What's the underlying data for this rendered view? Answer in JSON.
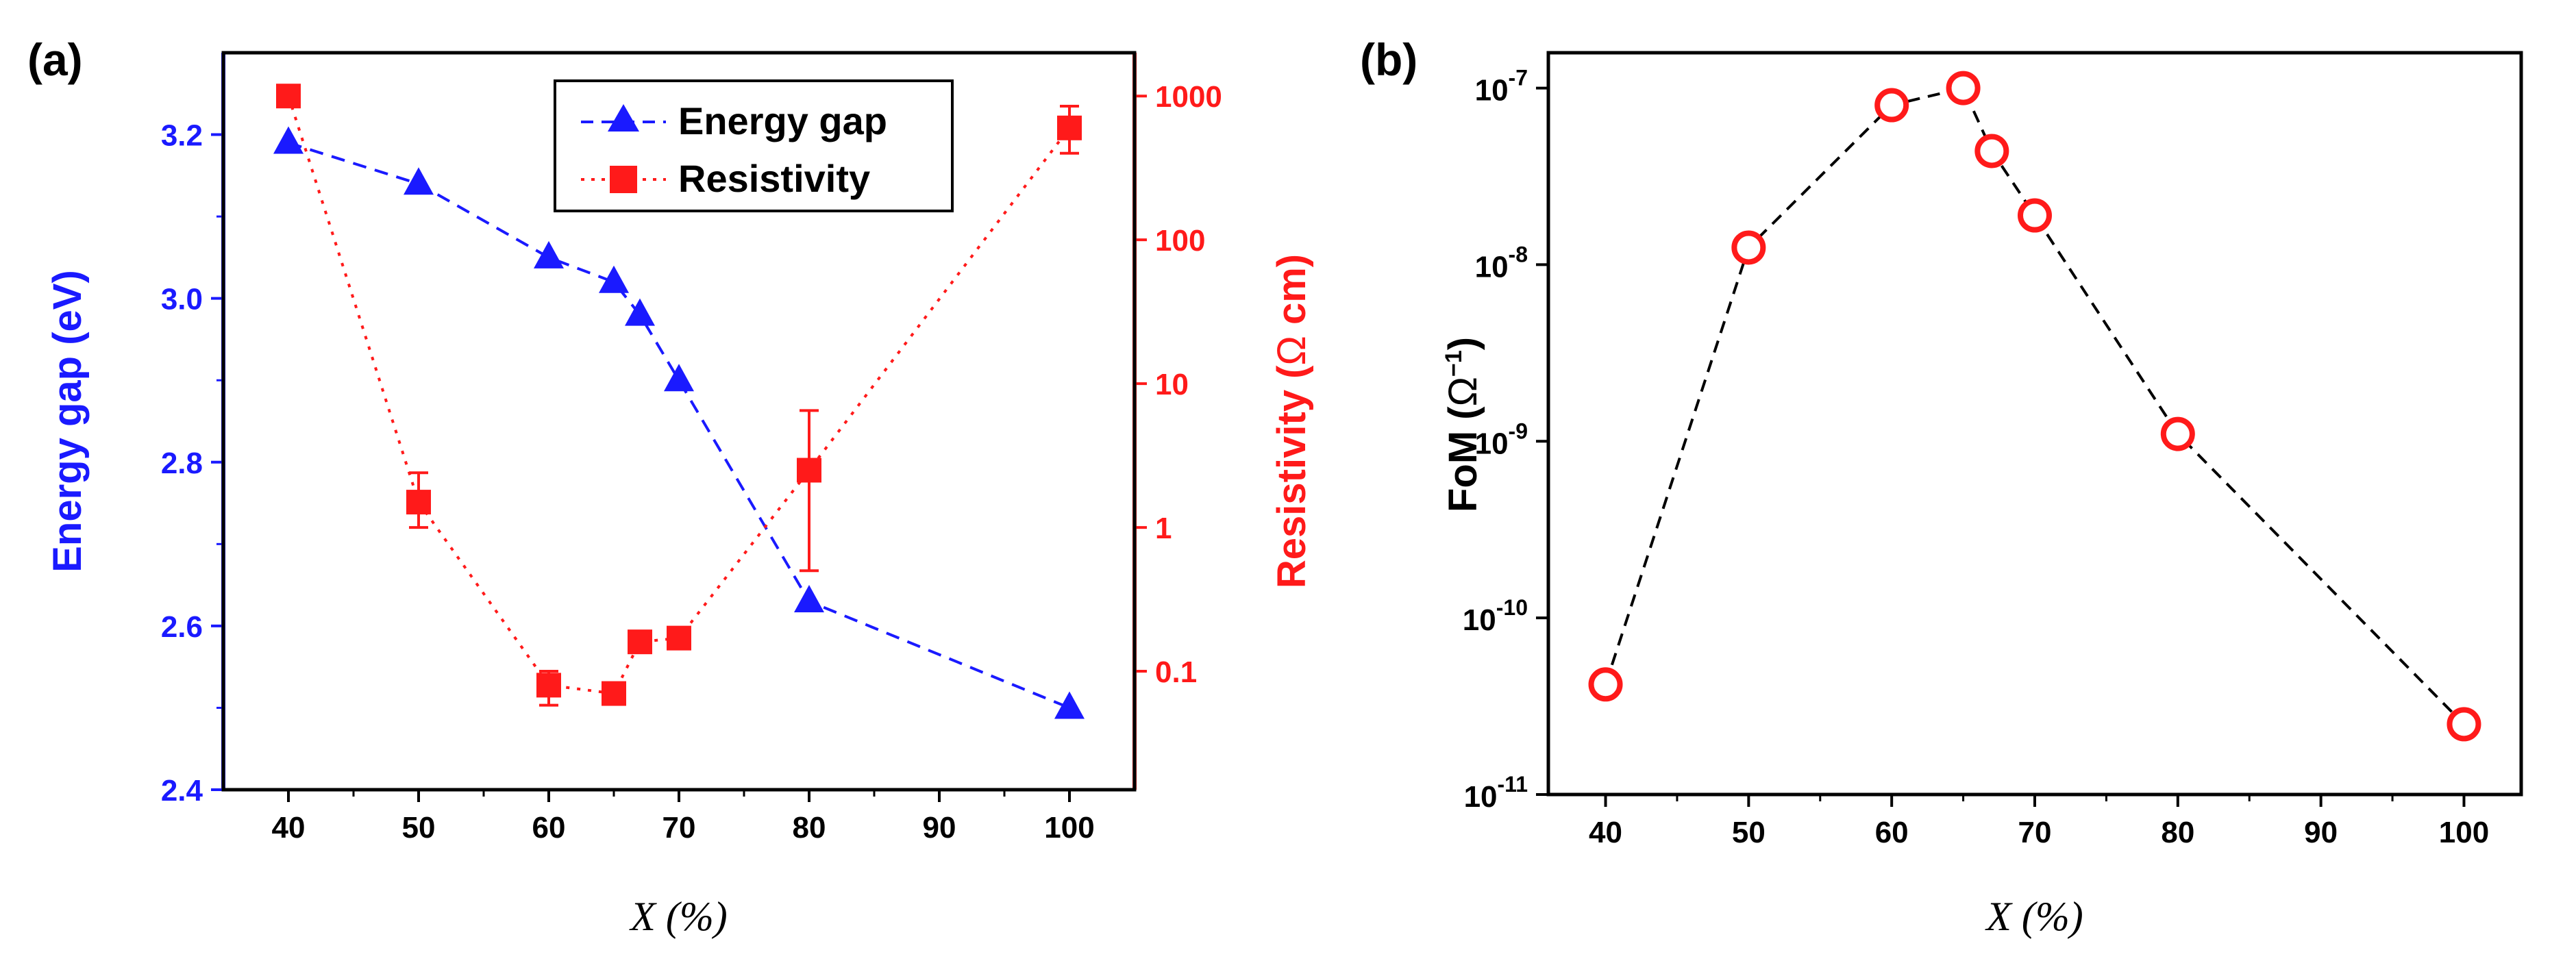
{
  "chart_data": [
    {
      "panel_label": "(a)",
      "type": "line",
      "xlabel_var": "X",
      "xlabel_unit": " (%)",
      "xlim": [
        35,
        105
      ],
      "xticks": [
        40,
        50,
        60,
        70,
        80,
        90,
        100
      ],
      "y_left": {
        "label": "Energy gap (eV)",
        "color": "#1a1aff",
        "lim": [
          2.4,
          3.3
        ],
        "ticks": [
          2.4,
          2.6,
          2.8,
          3.0,
          3.2
        ],
        "tick_labels": [
          "2.4",
          "2.6",
          "2.8",
          "3.0",
          "3.2"
        ]
      },
      "y_right": {
        "label_main": "Resistivity (",
        "label_omega": "Ω",
        "label_end": " cm)",
        "color": "#ff1a1a",
        "scale": "log",
        "lim": [
          0.015,
          2000
        ],
        "ticks": [
          0.1,
          1,
          10,
          100,
          1000
        ],
        "tick_labels": [
          "0.1",
          "1",
          "10",
          "100",
          "1000"
        ]
      },
      "series": [
        {
          "name": "Energy gap",
          "axis": "left",
          "marker": "triangle",
          "line_style": "dashed",
          "color": "#1a1aff",
          "x": [
            40,
            50,
            60,
            65,
            67,
            70,
            80,
            100
          ],
          "values": [
            3.19,
            3.14,
            3.05,
            3.02,
            2.98,
            2.9,
            2.63,
            2.5
          ]
        },
        {
          "name": "Resistivity",
          "axis": "right",
          "marker": "square",
          "line_style": "dotted",
          "color": "#ff1a1a",
          "x": [
            40,
            50,
            60,
            65,
            67,
            70,
            80,
            100
          ],
          "values": [
            1000,
            1.5,
            0.08,
            0.07,
            0.16,
            0.17,
            2.5,
            600
          ],
          "err_low": [
            1000,
            1.0,
            0.058,
            0.07,
            0.16,
            0.17,
            0.5,
            400
          ],
          "err_high": [
            1000,
            2.4,
            0.1,
            0.07,
            0.16,
            0.17,
            6.5,
            850
          ]
        }
      ],
      "legend": [
        "Energy gap",
        "Resistivity"
      ],
      "legend_position": "top-right"
    },
    {
      "panel_label": "(b)",
      "type": "line",
      "xlabel_var": "X",
      "xlabel_unit": " (%)",
      "xlim": [
        36,
        104
      ],
      "xticks": [
        40,
        50,
        60,
        70,
        80,
        90,
        100
      ],
      "ylabel_main": "FoM (",
      "ylabel_omega": "Ω",
      "ylabel_exp": "−1",
      "ylabel_end": ")",
      "yscale": "log",
      "ylim_exp": [
        -11,
        -6.8
      ],
      "yticks_exp": [
        -11,
        -10,
        -9,
        -8,
        -7
      ],
      "ytick_base": "10",
      "ytick_exp_labels": [
        "-11",
        "-10",
        "-9",
        "-8",
        "-7"
      ],
      "series": [
        {
          "name": "FoM",
          "marker": "open-circle",
          "line_style": "dashed",
          "marker_color": "#ff1a1a",
          "line_color": "#000000",
          "x": [
            40,
            50,
            60,
            65,
            67,
            70,
            80,
            100
          ],
          "values": [
            4.2e-11,
            1.25e-08,
            8e-08,
            1e-07,
            4.4e-08,
            1.9e-08,
            1.1e-09,
            2.5e-11
          ]
        }
      ]
    }
  ]
}
